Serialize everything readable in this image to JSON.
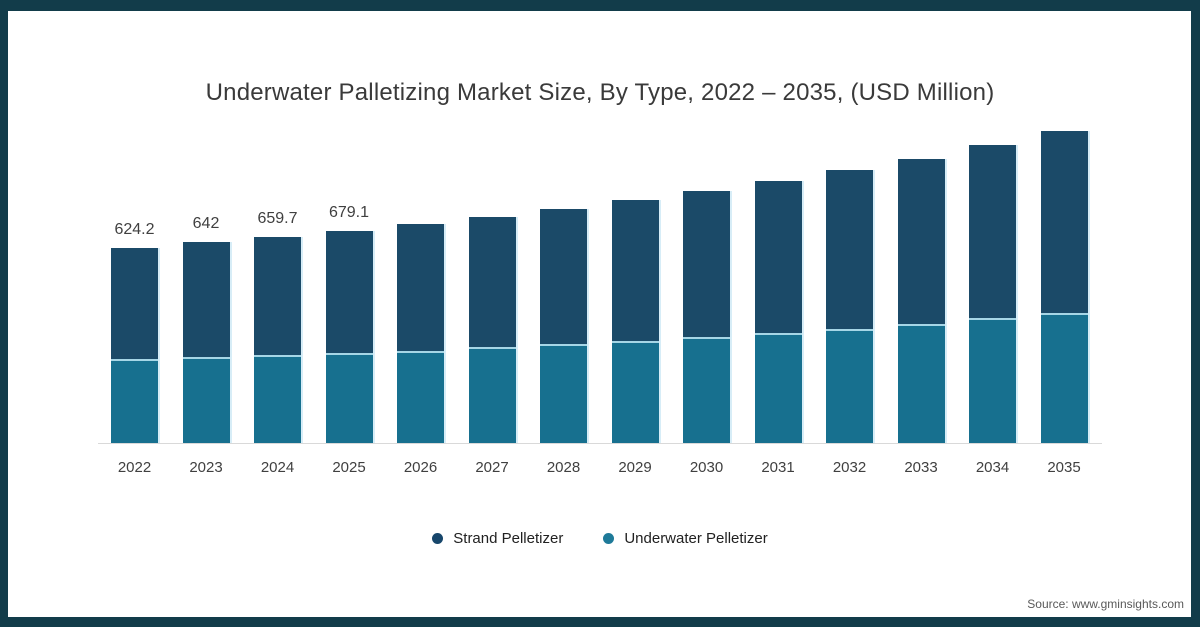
{
  "title": "Underwater Palletizing Market Size, By Type, 2022 – 2035, (USD Million)",
  "source": "Source: www.gminsights.com",
  "frame": {
    "border_color": "#123c4a"
  },
  "legend": [
    {
      "label": "Strand Pelletizer",
      "color": "#17466b"
    },
    {
      "label": "Underwater Pelletizer",
      "color": "#1e7a99"
    }
  ],
  "chart_data": {
    "type": "bar",
    "stacked": true,
    "title": "Underwater Palletizing Market Size, By Type, 2022 – 2035, (USD Million)",
    "xlabel": "",
    "ylabel": "USD Million",
    "ylim": [
      0,
      1035
    ],
    "grid": false,
    "legend_position": "bottom",
    "categories": [
      "2022",
      "2023",
      "2024",
      "2025",
      "2026",
      "2027",
      "2028",
      "2029",
      "2030",
      "2031",
      "2032",
      "2033",
      "2034",
      "2035"
    ],
    "series": [
      {
        "name": "Strand Pelletizer",
        "color": "#1b4a68",
        "values": [
          354.2,
          367,
          378.7,
          391.1,
          404,
          418,
          434,
          450,
          468,
          487,
          508,
          530,
          554,
          580
        ]
      },
      {
        "name": "Underwater Pelletizer",
        "color": "#17708f",
        "values": [
          270,
          275,
          281,
          288,
          296,
          306,
          316,
          327,
          338,
          351,
          365,
          380,
          400,
          417
        ]
      }
    ],
    "totals": [
      624.2,
      642,
      659.7,
      679.1,
      700,
      724,
      750,
      777,
      806,
      838,
      873,
      910,
      954,
      997
    ],
    "data_labels": [
      "624.2",
      "642",
      "659.7",
      "679.1",
      null,
      null,
      null,
      null,
      null,
      null,
      null,
      null,
      null,
      null
    ]
  }
}
